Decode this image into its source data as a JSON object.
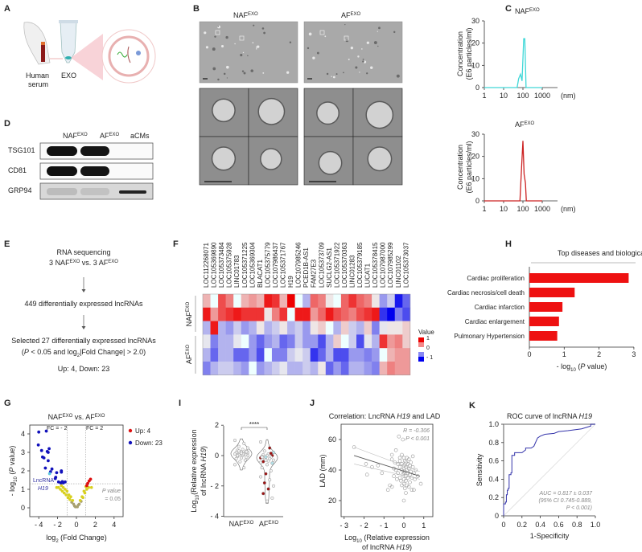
{
  "panels": {
    "A": "A",
    "B": "B",
    "C": "C",
    "D": "D",
    "E": "E",
    "F": "F",
    "G": "G",
    "H": "H",
    "I": "I",
    "J": "J",
    "K": "K"
  },
  "groups": {
    "naf": "NAF",
    "af": "AF",
    "exo": "EXO"
  },
  "panel_a": {
    "serum_line1": "Human",
    "serum_line2": "serum",
    "exo": "EXO"
  },
  "panel_c": {
    "ylabel_line1": "Concentration",
    "ylabel_line2": "(E6 particles/ml)",
    "x_ticks": [
      "1",
      "10",
      "100",
      "1000"
    ],
    "x_unit": "(nm)",
    "y_ticks": [
      "0",
      "10",
      "20",
      "30"
    ],
    "chart_data": [
      {
        "type": "line",
        "title": "NAF EXO",
        "color": "#40d8d8",
        "x_scale": "log",
        "xlim": [
          1,
          1000
        ],
        "ylim": [
          0,
          30
        ],
        "x": [
          1,
          50,
          60,
          75,
          90,
          110,
          125,
          145,
          1000
        ],
        "y": [
          0,
          0,
          4,
          6,
          3,
          22,
          22,
          0,
          0
        ]
      },
      {
        "type": "line",
        "title": "AF EXO",
        "color": "#cc2222",
        "x_scale": "log",
        "xlim": [
          1,
          1000
        ],
        "ylim": [
          0,
          30
        ],
        "x": [
          1,
          70,
          85,
          100,
          115,
          135,
          150,
          1000
        ],
        "y": [
          0,
          0,
          15,
          27,
          12,
          8,
          0,
          0
        ]
      }
    ]
  },
  "panel_d": {
    "columns": [
      "NAF",
      "AF",
      "aCMs"
    ],
    "rows": [
      "TSG101",
      "CD81",
      "GRP94"
    ]
  },
  "panel_e": {
    "line1": "RNA sequencing",
    "line2_prefix": "3 ",
    "line2_mid": " vs. 3 ",
    "line3": "449 differentially expressed lncRNAs",
    "line4": "Selected 27 differentially expressed lncRNAs",
    "line5_open": "(",
    "line5_p": "P",
    "line5_rest1": " < 0.05 and log",
    "line5_sub": "2",
    "line5_rest2": "|Fold Change| > 2.0)",
    "line6": "Up: 4, Down: 23"
  },
  "panel_f": {
    "genes": [
      "LOC112268071",
      "LOC105369890",
      "LOC105373484",
      "LOC105375928",
      "LINC01783",
      "LOC105371225",
      "LOC105369304",
      "BLACAT1",
      "LOC105375779",
      "LOC107986437",
      "LOC105371767",
      "H19",
      "LOC107985246",
      "PCED1B-AS1",
      "FAM27E3",
      "LOC105373709",
      "SUCLG2-AS1",
      "LOC105371922",
      "LOC105370363",
      "LINC01283",
      "LOC105379185",
      "LUCAT1",
      "LOC105378415",
      "LOC107987000",
      "LOC107985299",
      "LINC01102",
      "LOC105373037"
    ],
    "legend_title": "Value",
    "legend_ticks": [
      "1",
      "0",
      "- 1"
    ],
    "colors": {
      "high": "#ee0000",
      "mid": "#ffffff",
      "low": "#0000ee"
    },
    "chart_data": {
      "type": "heatmap",
      "vlim": [
        -1,
        1
      ],
      "rows": [
        [
          0.3,
          0,
          0.7,
          0.5,
          0,
          0.3,
          0.4,
          0.3,
          0.9,
          0.8,
          0.3,
          1,
          0,
          -0.3,
          0.6,
          0.5,
          0.1,
          0,
          0.6,
          0.8,
          0.6,
          0.5,
          0.1,
          -0.4,
          -0.2,
          -0.9,
          -0.6
        ],
        [
          0.9,
          0.4,
          0.7,
          0.8,
          0.9,
          0.8,
          0.8,
          0.8,
          0.1,
          0.5,
          0.8,
          0,
          0.9,
          0.9,
          0.4,
          0.6,
          0.9,
          0.7,
          0.6,
          0.5,
          0.7,
          0.8,
          0.9,
          -0.8,
          -1,
          -0.5,
          -0.7
        ],
        [
          -0.3,
          0.9,
          -0.3,
          -0.4,
          -0.2,
          -0.4,
          -0.3,
          0.1,
          -0.3,
          -0.2,
          0.1,
          -0.3,
          -0.2,
          -0.4,
          0.1,
          0.2,
          0,
          -0.3,
          0.2,
          -0.2,
          -0.3,
          0.2,
          -0.5,
          -0.1,
          0.1,
          0.1,
          0.2
        ],
        [
          -0.1,
          -0.5,
          -0.3,
          -0.3,
          -0.1,
          0,
          -0.4,
          -0.6,
          -0.4,
          -0.3,
          -0.6,
          -0.5,
          -0.2,
          -0.4,
          -0.4,
          -0.7,
          -0.3,
          0.2,
          0,
          -0.2,
          -0.7,
          -0.1,
          -0.3,
          0.8,
          0.4,
          0.5,
          0.2
        ],
        [
          -0.3,
          -0.6,
          -0.3,
          -0.3,
          -0.6,
          -0.6,
          -0.4,
          -0.7,
          0,
          -0.5,
          -0.5,
          -0.2,
          -0.1,
          -0.2,
          -0.8,
          -0.6,
          -0.3,
          -0.7,
          -0.7,
          -0.4,
          -0.4,
          -0.5,
          -0.4,
          0,
          0.3,
          0.4,
          0.4
        ],
        [
          -0.5,
          -0.3,
          -0.2,
          -0.2,
          -0.3,
          -0.4,
          0,
          -0.4,
          -0.3,
          -0.2,
          -0.1,
          -0.3,
          -0.3,
          -0.2,
          -0.3,
          0.1,
          -0.6,
          -0.4,
          -0.6,
          -0.3,
          -0.3,
          -0.4,
          -0.5,
          0.3,
          0.5,
          0.4,
          0.4
        ]
      ]
    }
  },
  "panel_h": {
    "chart_data": {
      "type": "bar",
      "orientation": "horizontal",
      "title": "Top diseases and biological functions",
      "categories": [
        "Cardiac proliferation",
        "Cardiac necrosis/cell death",
        "Cardiac infarction",
        "Cardiac enlargement",
        "Pulmonary Hypertension"
      ],
      "values": [
        2.85,
        1.3,
        0.95,
        0.85,
        0.8
      ],
      "xlim": [
        0,
        3
      ],
      "x_ticks": [
        "0",
        "1",
        "2",
        "3"
      ],
      "color": "#ee1111"
    },
    "xlabel_prefix": "- log",
    "xlabel_sub": "10",
    "xlabel_open": " (",
    "xlabel_p": "P",
    "xlabel_close": " value)"
  },
  "panel_g": {
    "title_mid": " vs. ",
    "fc_neg": "FC = - 2",
    "fc_pos": "FC = 2",
    "pval_line1": "P value",
    "pval_line2": "= 0.05",
    "lnc_line1": "LncRNA",
    "lnc_line2": "H19",
    "legend": [
      {
        "label": "Up: 4",
        "color": "#dd1111"
      },
      {
        "label": "Down: 23",
        "color": "#1111bb"
      }
    ],
    "x_ticks": [
      "- 4",
      "- 2",
      "0",
      "2",
      "4"
    ],
    "y_ticks": [
      "0",
      "1",
      "2",
      "3",
      "4"
    ],
    "xlabel_prefix": "log",
    "xlabel_sub": "2",
    "xlabel_rest": " (Fold Change)",
    "ylabel_prefix": "- log",
    "ylabel_sub": "10",
    "ylabel_open": " (",
    "ylabel_p": "P",
    "ylabel_close": " value)",
    "chart_data": {
      "type": "scatter",
      "xlim": [
        -5,
        5
      ],
      "ylim": [
        -0.6,
        4.5
      ],
      "down": [
        [
          -4,
          4.1
        ],
        [
          -3.2,
          4.15
        ],
        [
          -4.05,
          3.4
        ],
        [
          -3.7,
          3.1
        ],
        [
          -2.9,
          3.2
        ],
        [
          -3,
          3.0
        ],
        [
          -3.1,
          3.05
        ],
        [
          -3.6,
          2.75
        ],
        [
          -3.45,
          2.7
        ],
        [
          -3,
          2.55
        ],
        [
          -2.6,
          2.1
        ],
        [
          -3.3,
          2.15
        ],
        [
          -2.1,
          1.9
        ],
        [
          -1.6,
          2.0
        ],
        [
          -1.6,
          1.93
        ],
        [
          -2.2,
          1.65
        ],
        [
          -2.25,
          1.58
        ],
        [
          -1.9,
          1.4
        ],
        [
          -1.65,
          1.35
        ],
        [
          -1.4,
          1.35
        ],
        [
          -1.2,
          1.4
        ],
        [
          -1.5,
          1.42
        ],
        [
          -2.75,
          1.95
        ]
      ],
      "h19": [
        -2.85,
        1.85
      ],
      "up": [
        [
          1.1,
          1.2
        ],
        [
          1.2,
          1.32
        ],
        [
          1.35,
          1.45
        ],
        [
          1.5,
          1.55
        ]
      ],
      "ns": [
        [
          -1.9,
          1.1
        ],
        [
          -1.7,
          1.0
        ],
        [
          -1.5,
          0.9
        ],
        [
          -1.3,
          0.8
        ],
        [
          -1.1,
          0.7
        ],
        [
          -0.9,
          0.55
        ],
        [
          -0.7,
          0.45
        ],
        [
          -0.5,
          0.3
        ],
        [
          -0.3,
          0.2
        ],
        [
          -0.1,
          0.05
        ],
        [
          0.1,
          0.05
        ],
        [
          0.3,
          0.2
        ],
        [
          0.5,
          0.35
        ],
        [
          0.7,
          0.55
        ],
        [
          0.9,
          0.8
        ],
        [
          1.1,
          1.0
        ],
        [
          1.3,
          1.1
        ],
        [
          1.6,
          1.1
        ],
        [
          -1.6,
          1.2
        ],
        [
          -1.2,
          1.0
        ],
        [
          -0.8,
          0.7
        ],
        [
          -0.6,
          0.6
        ],
        [
          -0.4,
          0.4
        ],
        [
          0.4,
          0.4
        ],
        [
          0.6,
          0.6
        ],
        [
          0.8,
          0.9
        ],
        [
          1.0,
          1.15
        ],
        [
          -1.0,
          0.9
        ],
        [
          -1.4,
          1.1
        ],
        [
          -0.2,
          0.1
        ],
        [
          0.2,
          0.15
        ],
        [
          -2.1,
          1.1
        ]
      ]
    }
  },
  "panel_i": {
    "signif": "****",
    "y_ticks": [
      "2",
      "0",
      "- 2",
      "- 4"
    ],
    "ylabel_line1_prefix": "Log",
    "ylabel_sub": "10",
    "ylabel_line1_rest": "(Relative expression",
    "ylabel_line2_prefix": "of lncRNA ",
    "ylabel_line2_gene": "H19",
    ")": ")",
    "chart_data": {
      "type": "violin",
      "ylim": [
        -4,
        2
      ],
      "naf": [
        1.0,
        0.8,
        0.6,
        0.5,
        0.4,
        0.35,
        0.3,
        0.25,
        0.2,
        0.2,
        0.15,
        0.1,
        0.1,
        0.05,
        0,
        0,
        -0.05,
        -0.1,
        -0.15,
        -0.2,
        -0.3,
        -0.4,
        -0.6,
        -0.8,
        0.3,
        0.2,
        0.1,
        0.0,
        0.25,
        0.15
      ],
      "af": [
        0.9,
        0.5,
        0.3,
        0.2,
        0.1,
        0.05,
        0,
        0,
        -0.05,
        -0.1,
        -0.1,
        -0.15,
        -0.2,
        -0.25,
        -0.3,
        -0.35,
        -0.4,
        -0.5,
        -0.6,
        -0.8,
        -1.0,
        -1.2,
        -1.4,
        -1.6,
        -1.8,
        -2.0,
        -2.2,
        -2.5,
        -2.8,
        -3.0,
        -0.1,
        0.15,
        -0.3,
        -0.45
      ]
    }
  },
  "panel_j": {
    "title_prefix": "Correlation: LncRNA ",
    "title_gene": "H19",
    "title_suffix": " and LAD",
    "r_text": "R = -0.306",
    "p_text": "P < 0.001",
    "ylabel": "LAD (mm)",
    "x_ticks": [
      "- 3",
      "- 2",
      "- 1",
      "0",
      "1"
    ],
    "y_ticks": [
      "20",
      "40",
      "60"
    ],
    "xlabel_line1_prefix": "Log",
    "xlabel_sub": "10",
    "xlabel_line1_rest": " (Relative expression",
    "xlabel_line2_prefix": "of lncRNA ",
    "xlabel_line2_gene": "H19",
    "xlabel_line2_close": ")",
    "chart_data": {
      "type": "scatter",
      "xlim": [
        -3,
        1.5
      ],
      "ylim": [
        10,
        70
      ],
      "fit": [
        [
          -2.5,
          49.5
        ],
        [
          0.8,
          36
        ]
      ],
      "points": [
        [
          -2.5,
          55
        ],
        [
          -1.9,
          44
        ],
        [
          -1.85,
          37
        ],
        [
          -1.6,
          42
        ],
        [
          -1.3,
          43
        ],
        [
          -1.1,
          38
        ],
        [
          -0.7,
          30
        ],
        [
          -0.6,
          29
        ],
        [
          -0.25,
          62
        ],
        [
          -0.05,
          60
        ],
        [
          0,
          20
        ],
        [
          0.85,
          31
        ],
        [
          0.5,
          27
        ],
        [
          0.1,
          25
        ],
        [
          -0.4,
          53
        ],
        [
          -0.8,
          27
        ],
        [
          -0.6,
          50
        ],
        [
          -0.6,
          47
        ],
        [
          -0.5,
          41
        ],
        [
          -0.5,
          36
        ],
        [
          -0.3,
          44
        ],
        [
          -0.3,
          38
        ],
        [
          -0.2,
          48
        ],
        [
          -0.2,
          46
        ],
        [
          -0.2,
          42
        ],
        [
          -0.2,
          35
        ],
        [
          -0.15,
          33
        ],
        [
          -0.1,
          50
        ],
        [
          -0.1,
          44
        ],
        [
          -0.1,
          40
        ],
        [
          -0.05,
          37
        ],
        [
          0,
          48
        ],
        [
          0,
          43
        ],
        [
          0,
          41
        ],
        [
          0,
          38
        ],
        [
          0,
          34
        ],
        [
          0,
          31
        ],
        [
          0.05,
          46
        ],
        [
          0.05,
          39
        ],
        [
          0.1,
          45
        ],
        [
          0.1,
          42
        ],
        [
          0.1,
          36
        ],
        [
          0.1,
          33
        ],
        [
          0.15,
          48
        ],
        [
          0.15,
          40
        ],
        [
          0.15,
          30
        ],
        [
          0.2,
          44
        ],
        [
          0.2,
          38
        ],
        [
          0.2,
          35
        ],
        [
          0.25,
          47
        ],
        [
          0.25,
          41
        ],
        [
          0.3,
          43
        ],
        [
          0.3,
          37
        ],
        [
          0.3,
          32
        ],
        [
          0.35,
          45
        ],
        [
          0.35,
          39
        ],
        [
          0.4,
          35
        ],
        [
          0.45,
          49
        ],
        [
          0.45,
          42
        ],
        [
          0.5,
          38
        ],
        [
          0.55,
          34
        ],
        [
          0.6,
          40
        ],
        [
          0.7,
          36
        ],
        [
          -0.4,
          40
        ],
        [
          -0.35,
          34
        ],
        [
          -0.45,
          45
        ],
        [
          0.05,
          28
        ],
        [
          0.25,
          29
        ],
        [
          -0.1,
          30
        ],
        [
          0.4,
          27
        ]
      ]
    }
  },
  "panel_k": {
    "title_prefix": "ROC curve of lncRNA ",
    "title_gene": "H19",
    "auc_line1": "AUC = 0.817  ± 0.037",
    "auc_line2": "(95% CI 0.745-0.889,",
    "auc_line3": "P < 0.001)",
    "xlabel": "1-Specificity",
    "ylabel": "Sensitivity",
    "x_ticks": [
      "0",
      "0.2",
      "0.4",
      "0.6",
      "0.8",
      "1.0"
    ],
    "y_ticks": [
      "0",
      "0.2",
      "0.4",
      "0.6",
      "0.8",
      "1.0"
    ],
    "chart_data": {
      "type": "line",
      "xlim": [
        0,
        1
      ],
      "ylim": [
        0,
        1
      ],
      "color": "#3333aa",
      "points": [
        [
          0,
          0
        ],
        [
          0,
          0.13
        ],
        [
          0.02,
          0.13
        ],
        [
          0.02,
          0.15
        ],
        [
          0.03,
          0.15
        ],
        [
          0.03,
          0.23
        ],
        [
          0.04,
          0.23
        ],
        [
          0.04,
          0.28
        ],
        [
          0.05,
          0.28
        ],
        [
          0.05,
          0.3
        ],
        [
          0.06,
          0.3
        ],
        [
          0.06,
          0.45
        ],
        [
          0.08,
          0.45
        ],
        [
          0.08,
          0.47
        ],
        [
          0.09,
          0.47
        ],
        [
          0.09,
          0.66
        ],
        [
          0.12,
          0.66
        ],
        [
          0.12,
          0.69
        ],
        [
          0.2,
          0.69
        ],
        [
          0.24,
          0.72
        ],
        [
          0.24,
          0.74
        ],
        [
          0.3,
          0.74
        ],
        [
          0.33,
          0.76
        ],
        [
          0.37,
          0.85
        ],
        [
          0.4,
          0.87
        ],
        [
          0.45,
          0.89
        ],
        [
          0.55,
          0.9
        ],
        [
          0.6,
          0.92
        ],
        [
          0.7,
          0.93
        ],
        [
          0.85,
          0.95
        ],
        [
          0.95,
          0.98
        ],
        [
          0.95,
          1
        ],
        [
          1,
          1
        ]
      ]
    }
  }
}
